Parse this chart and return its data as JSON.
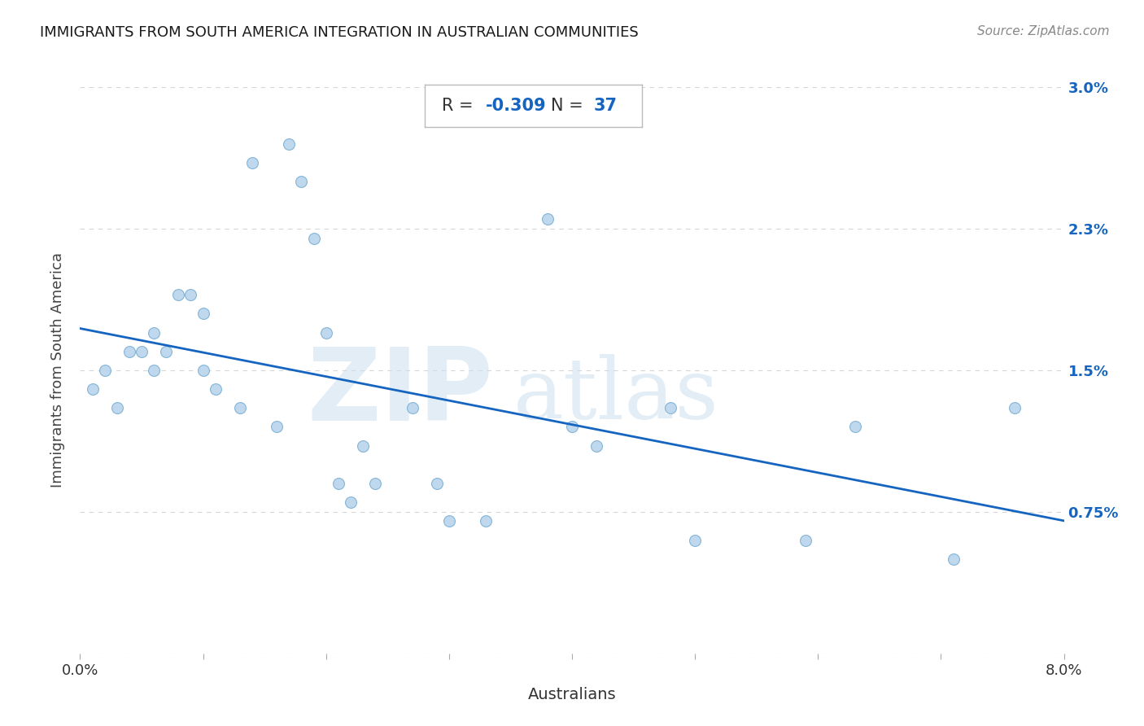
{
  "title": "IMMIGRANTS FROM SOUTH AMERICA INTEGRATION IN AUSTRALIAN COMMUNITIES",
  "source": "Source: ZipAtlas.com",
  "xlabel": "Australians",
  "ylabel": "Immigrants from South America",
  "R": -0.309,
  "N": 37,
  "x_data": [
    0.001,
    0.002,
    0.003,
    0.004,
    0.005,
    0.006,
    0.006,
    0.007,
    0.008,
    0.009,
    0.01,
    0.01,
    0.011,
    0.013,
    0.014,
    0.016,
    0.017,
    0.018,
    0.019,
    0.02,
    0.021,
    0.022,
    0.023,
    0.024,
    0.027,
    0.029,
    0.03,
    0.033,
    0.038,
    0.04,
    0.042,
    0.048,
    0.05,
    0.059,
    0.063,
    0.071,
    0.076
  ],
  "y_data": [
    0.014,
    0.015,
    0.013,
    0.016,
    0.016,
    0.017,
    0.015,
    0.016,
    0.019,
    0.019,
    0.018,
    0.015,
    0.014,
    0.013,
    0.026,
    0.012,
    0.027,
    0.025,
    0.022,
    0.017,
    0.009,
    0.008,
    0.011,
    0.009,
    0.013,
    0.009,
    0.007,
    0.007,
    0.023,
    0.012,
    0.011,
    0.013,
    0.006,
    0.006,
    0.012,
    0.005,
    0.013
  ],
  "scatter_color": "#b8d4ec",
  "scatter_edge_color": "#7aafd4",
  "line_color": "#1565c0",
  "dot_size": 100,
  "xlim": [
    0,
    0.08
  ],
  "ylim": [
    0,
    0.03
  ],
  "x_ticks": [
    0.0,
    0.01,
    0.02,
    0.03,
    0.04,
    0.05,
    0.06,
    0.07,
    0.08
  ],
  "x_tick_labels": [
    "0.0%",
    "",
    "",
    "",
    "",
    "",
    "",
    "",
    "8.0%"
  ],
  "y_ticks": [
    0.0,
    0.0075,
    0.015,
    0.0225,
    0.03
  ],
  "y_tick_labels": [
    "",
    "0.75%",
    "1.5%",
    "2.3%",
    "3.0%"
  ],
  "watermark_zip": "ZIP",
  "watermark_atlas": "atlas",
  "background_color": "#ffffff",
  "grid_color": "#cccccc",
  "stats_color": "#1565c0",
  "stats_label_color": "#333333"
}
